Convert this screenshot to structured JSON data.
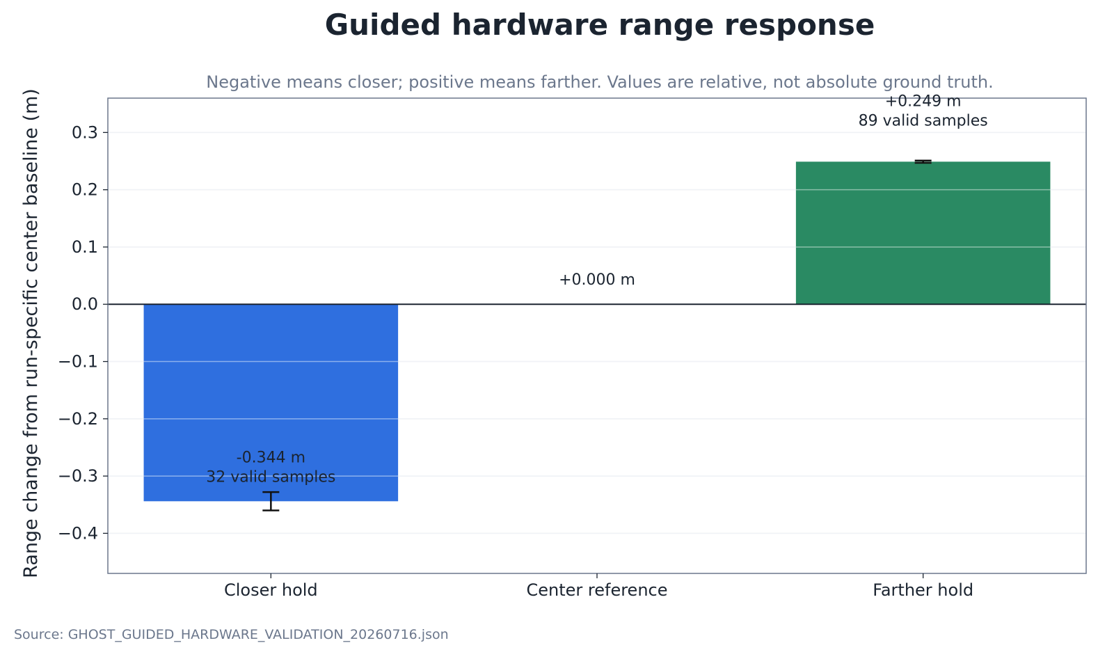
{
  "chart_data": {
    "type": "bar",
    "title": "Guided hardware range response",
    "subtitle": "Negative means closer; positive means farther. Values are relative, not absolute ground truth.",
    "xlabel": "",
    "ylabel": "Range change from run-specific center baseline (m)",
    "ylim": [
      -0.47,
      0.36
    ],
    "yticks": [
      0.3,
      0.2,
      0.1,
      0.0,
      -0.1,
      -0.2,
      -0.3,
      -0.4
    ],
    "ytick_labels": [
      "0.3",
      "0.2",
      "0.1",
      "0.0",
      "−0.1",
      "−0.2",
      "−0.3",
      "−0.4"
    ],
    "grid": true,
    "categories": [
      "Closer hold",
      "Center reference",
      "Farther hold"
    ],
    "values": [
      -0.344,
      0.0,
      0.249
    ],
    "errors": [
      0.016,
      0.0,
      0.002
    ],
    "colors": [
      "#2f6fdf",
      "#2f6fdf",
      "#2a8a63"
    ],
    "value_labels": [
      "-0.344 m",
      "+0.000 m",
      "+0.249 m"
    ],
    "sample_labels": [
      "32 valid samples",
      "",
      "89 valid samples"
    ]
  },
  "source": "Source: GHOST_GUIDED_HARDWARE_VALIDATION_20260716.json"
}
